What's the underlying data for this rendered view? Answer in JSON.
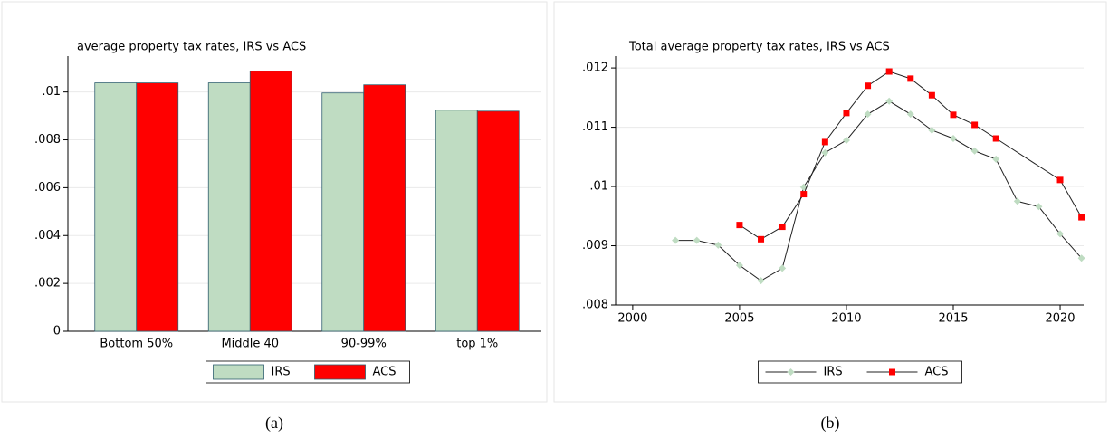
{
  "chart_data": [
    {
      "type": "bar",
      "title": "average property tax rates, IRS vs ACS",
      "caption": "(a)",
      "categories": [
        "Bottom 50%",
        "Middle 40",
        "90-99%",
        "top 1%"
      ],
      "series": [
        {
          "name": "IRS",
          "color": "#bfdcc2",
          "values": [
            0.01038,
            0.01038,
            0.00996,
            0.00924
          ]
        },
        {
          "name": "ACS",
          "color": "#ff0000",
          "values": [
            0.01038,
            0.01087,
            0.0103,
            0.0092
          ]
        }
      ],
      "ylim": [
        0,
        0.0115
      ],
      "yticks": [
        0,
        {
          "value": 0.002,
          "label": ".002"
        },
        {
          "value": 0.004,
          "label": ".004"
        },
        {
          "value": 0.006,
          "label": ".006"
        },
        {
          "value": 0.008,
          "label": ".008"
        },
        {
          "value": 0.01,
          "label": ".01"
        }
      ],
      "grid": true,
      "legend": "bottom"
    },
    {
      "type": "line",
      "title": "Total average property tax rates, IRS vs ACS",
      "caption": "(b)",
      "series": [
        {
          "name": "IRS",
          "color": "#bfdcc2",
          "x": [
            2002,
            2003,
            2004,
            2005,
            2006,
            2007,
            2008,
            2009,
            2010,
            2011,
            2012,
            2013,
            2014,
            2015,
            2016,
            2017,
            2018,
            2019,
            2020,
            2021
          ],
          "values": [
            0.00909,
            0.00909,
            0.00901,
            0.00867,
            0.00841,
            0.00862,
            0.00999,
            0.01057,
            0.01078,
            0.01122,
            0.01144,
            0.01122,
            0.01095,
            0.01081,
            0.0106,
            0.01046,
            0.00975,
            0.00966,
            0.0092,
            0.00879
          ]
        },
        {
          "name": "ACS",
          "color": "#ff0000",
          "x": [
            2005,
            2006,
            2007,
            2008,
            2009,
            2010,
            2011,
            2012,
            2013,
            2014,
            2015,
            2016,
            2017,
            2020,
            2021
          ],
          "values": [
            0.00935,
            0.00911,
            0.00932,
            0.00987,
            0.01075,
            0.01124,
            0.0117,
            0.01194,
            0.01182,
            0.01154,
            0.01121,
            0.01104,
            0.01081,
            0.01011,
            0.00948
          ]
        }
      ],
      "xlim": [
        1999.2,
        2021.1
      ],
      "xticks": [
        2000,
        2005,
        2010,
        2015,
        2020
      ],
      "ylim": [
        0.008,
        0.0122
      ],
      "yticks": [
        {
          "value": 0.008,
          "label": ".008"
        },
        {
          "value": 0.009,
          "label": ".009"
        },
        {
          "value": 0.01,
          "label": ".01"
        },
        {
          "value": 0.011,
          "label": ".011"
        },
        {
          "value": 0.012,
          "label": ".012"
        }
      ],
      "grid": true,
      "legend": "bottom"
    }
  ]
}
